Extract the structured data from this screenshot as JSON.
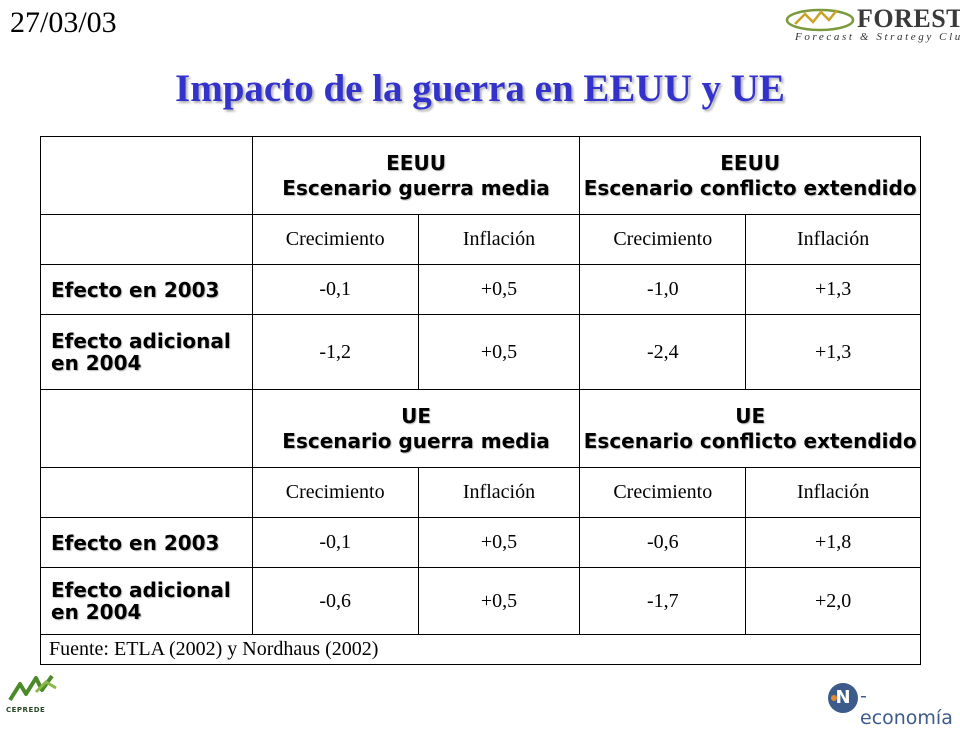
{
  "date": "27/03/03",
  "logo": {
    "name": "FOREST",
    "tagline": "Forecast & Strategy Club"
  },
  "title": "Impacto de la guerra en EEUU y UE",
  "sections": [
    {
      "scenarios": [
        {
          "region": "EEUU",
          "name": "Escenario guerra media"
        },
        {
          "region": "EEUU",
          "name": "Escenario conflicto extendido"
        }
      ],
      "columns": [
        "Crecimiento",
        "Inflación",
        "Crecimiento",
        "Inflación"
      ],
      "rows": [
        {
          "label": "Efecto en 2003",
          "values": [
            "-0,1",
            "+0,5",
            "-1,0",
            "+1,3"
          ]
        },
        {
          "label": "Efecto adicional en 2004",
          "values": [
            "-1,2",
            "+0,5",
            "-2,4",
            "+1,3"
          ]
        }
      ]
    },
    {
      "scenarios": [
        {
          "region": "UE",
          "name": "Escenario guerra media"
        },
        {
          "region": "UE",
          "name": "Escenario conflicto extendido"
        }
      ],
      "columns": [
        "Crecimiento",
        "Inflación",
        "Crecimiento",
        "Inflación"
      ],
      "rows": [
        {
          "label": "Efecto en 2003",
          "values": [
            "-0,1",
            "+0,5",
            "-0,6",
            "+1,8"
          ]
        },
        {
          "label": "Efecto adicional en 2004",
          "values": [
            "-0,6",
            "+0,5",
            "-1,7",
            "+2,0"
          ]
        }
      ]
    }
  ],
  "source": "Fuente: ETLA (2002) y Nordhaus (2002)",
  "footer": {
    "left_logo": "CEPREDE",
    "right_logo": "economía"
  },
  "colors": {
    "title": "#3333cc",
    "header_text": "#333399",
    "n_economia_blue": "#3c5a8a",
    "n_economia_orange": "#e58a2a"
  }
}
